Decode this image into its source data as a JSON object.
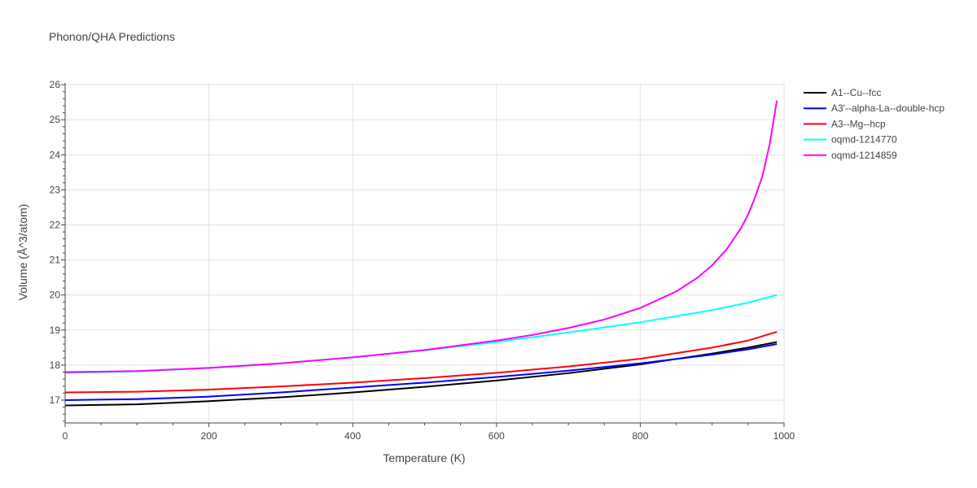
{
  "chart_data": {
    "type": "line",
    "title": "Phonon/QHA Predictions",
    "xlabel": "Temperature (K)",
    "ylabel": "Volume (Å^3/atom)",
    "xlim": [
      0,
      1000
    ],
    "ylim": [
      16.35,
      26.05
    ],
    "x_ticks": [
      0,
      200,
      400,
      600,
      800,
      1000
    ],
    "y_ticks": [
      17,
      18,
      19,
      20,
      21,
      22,
      23,
      24,
      25,
      26
    ],
    "grid": true,
    "legend_position": "top-right",
    "series": [
      {
        "name": "A1--Cu--fcc",
        "color": "#000000",
        "x": [
          0,
          100,
          200,
          300,
          400,
          500,
          600,
          700,
          800,
          900,
          950,
          990
        ],
        "y": [
          16.85,
          16.88,
          16.97,
          17.08,
          17.22,
          17.38,
          17.56,
          17.77,
          18.02,
          18.33,
          18.5,
          18.66
        ]
      },
      {
        "name": "A3'--alpha-La--double-hcp",
        "color": "#0000ff",
        "x": [
          0,
          100,
          200,
          300,
          400,
          500,
          600,
          700,
          800,
          900,
          950,
          990
        ],
        "y": [
          17.0,
          17.03,
          17.1,
          17.22,
          17.36,
          17.5,
          17.66,
          17.84,
          18.05,
          18.3,
          18.45,
          18.6
        ]
      },
      {
        "name": "A3--Mg--hcp",
        "color": "#ff0000",
        "x": [
          0,
          100,
          200,
          300,
          400,
          500,
          600,
          700,
          800,
          900,
          950,
          990
        ],
        "y": [
          17.22,
          17.24,
          17.3,
          17.39,
          17.5,
          17.63,
          17.78,
          17.96,
          18.18,
          18.5,
          18.7,
          18.95
        ]
      },
      {
        "name": "oqmd-1214770",
        "color": "#00ffff",
        "x": [
          0,
          100,
          200,
          300,
          400,
          500,
          600,
          700,
          800,
          900,
          950,
          990
        ],
        "y": [
          17.78,
          17.82,
          17.92,
          18.05,
          18.22,
          18.42,
          18.66,
          18.93,
          19.22,
          19.57,
          19.78,
          20.0
        ]
      },
      {
        "name": "oqmd-1214859",
        "color": "#ff00ff",
        "x": [
          0,
          100,
          200,
          300,
          400,
          500,
          600,
          650,
          700,
          750,
          800,
          850,
          880,
          900,
          920,
          940,
          950,
          960,
          970,
          980,
          990
        ],
        "y": [
          17.8,
          17.83,
          17.92,
          18.05,
          18.22,
          18.43,
          18.7,
          18.86,
          19.06,
          19.3,
          19.63,
          20.1,
          20.5,
          20.85,
          21.3,
          21.9,
          22.3,
          22.8,
          23.4,
          24.3,
          25.55
        ]
      }
    ]
  }
}
